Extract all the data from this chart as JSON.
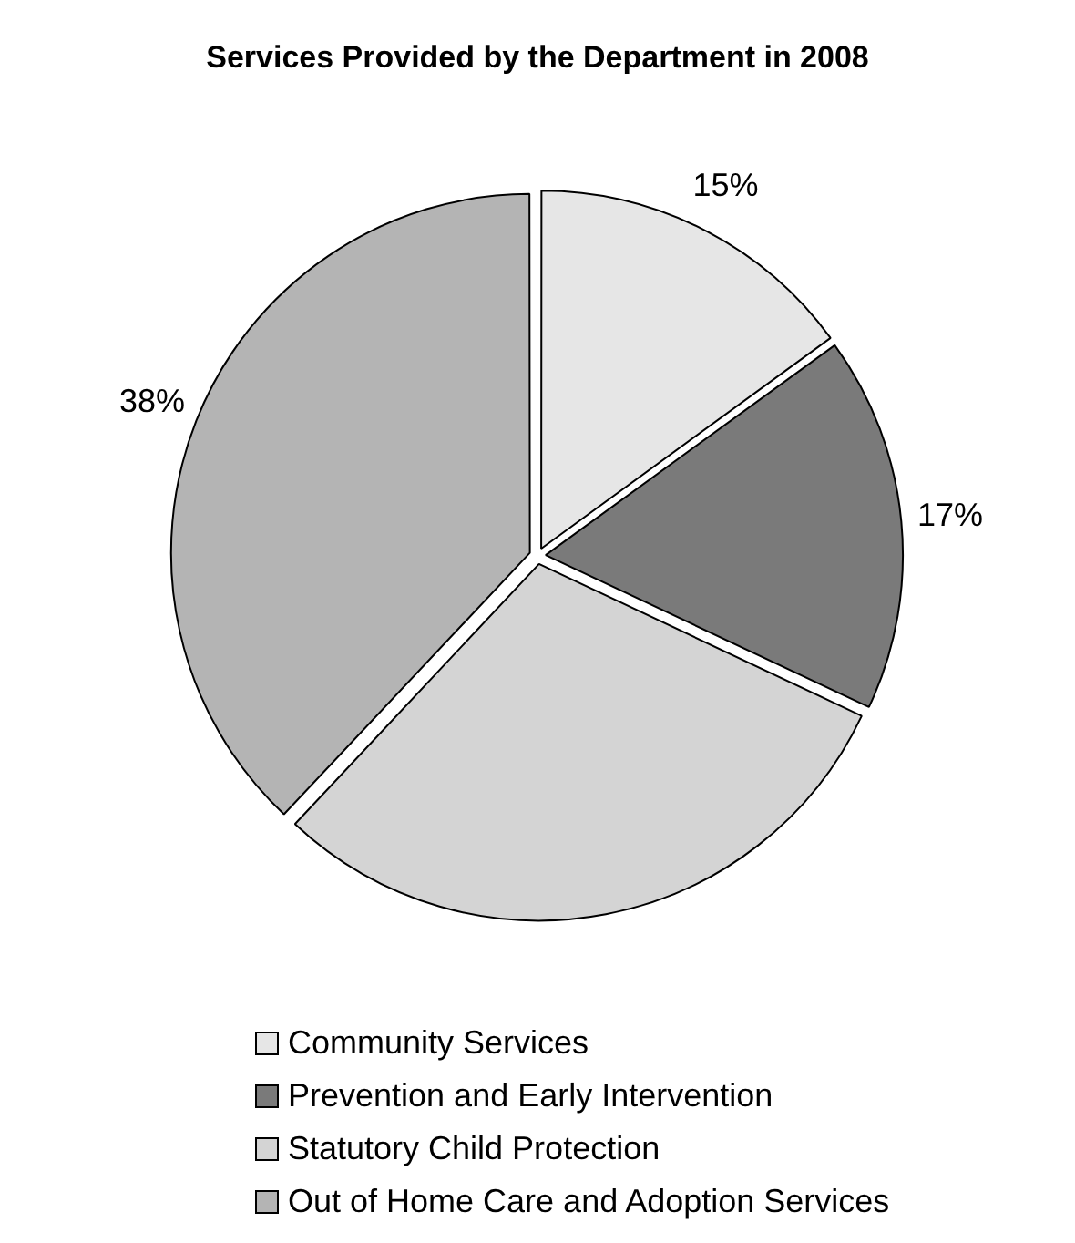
{
  "chart_data": {
    "type": "pie",
    "title": "Services Provided by the Department in 2008",
    "categories": [
      "Community Services",
      "Prevention and Early Intervention",
      "Statutory Child Protection",
      "Out of Home Care and Adoption Services"
    ],
    "values": [
      15,
      17,
      30,
      38
    ],
    "value_labels": [
      "15%",
      "17%",
      null,
      "38%"
    ],
    "colors": [
      "#e6e6e6",
      "#7a7a7a",
      "#d4d4d4",
      "#b4b4b4"
    ],
    "legend": "bottom"
  }
}
